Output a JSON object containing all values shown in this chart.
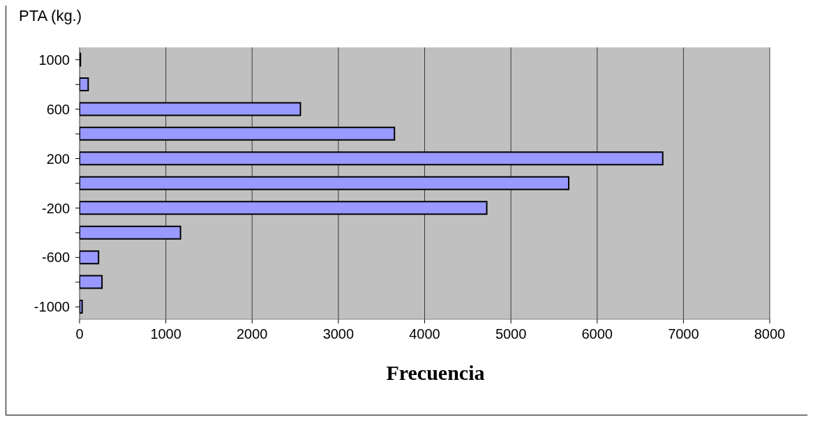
{
  "chart_data": {
    "type": "bar",
    "orientation": "horizontal",
    "ylabel": "PTA (kg.)",
    "xlabel": "Frecuencia",
    "categories": [
      "1000",
      null,
      "600",
      null,
      "200",
      null,
      "-200",
      null,
      "-600",
      null,
      "-1000"
    ],
    "values": [
      10,
      100,
      2560,
      3650,
      6760,
      5670,
      4720,
      1170,
      220,
      260,
      30
    ],
    "color": "#9999ff",
    "xlim": [
      0,
      8000
    ],
    "xticks": [
      0,
      1000,
      2000,
      3000,
      4000,
      5000,
      6000,
      7000,
      8000
    ],
    "grid": "x"
  }
}
